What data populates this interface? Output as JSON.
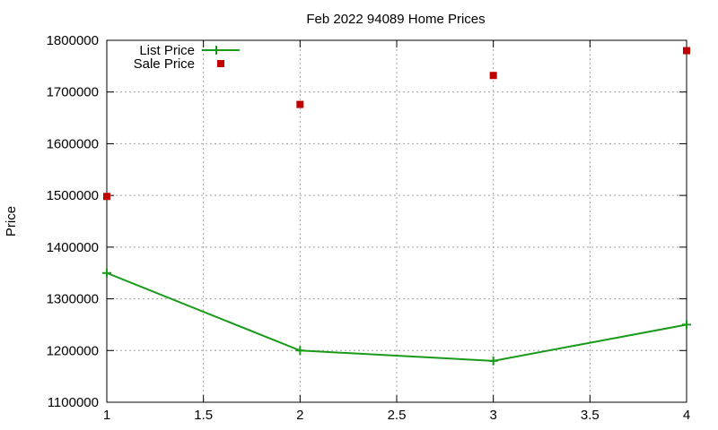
{
  "chart_data": {
    "type": "line",
    "title": "Feb 2022 94089 Home Prices",
    "xlabel": "",
    "ylabel": "Price",
    "xlim": [
      1,
      4
    ],
    "ylim": [
      1100000,
      1800000
    ],
    "x_ticks": [
      "1",
      "1.5",
      "2",
      "2.5",
      "3",
      "3.5",
      "4"
    ],
    "y_ticks": [
      "1100000",
      "1200000",
      "1300000",
      "1400000",
      "1500000",
      "1600000",
      "1700000",
      "1800000"
    ],
    "grid": true,
    "legend_position": "top-left",
    "series": [
      {
        "name": "List Price",
        "style": "line-with-plus-markers",
        "color": "#1a9a1a",
        "x": [
          1,
          2,
          3,
          4
        ],
        "y": [
          1350000,
          1200000,
          1180000,
          1250000
        ]
      },
      {
        "name": "Sale Price",
        "style": "square-markers",
        "color": "#c00000",
        "x": [
          1,
          2,
          3,
          4
        ],
        "y": [
          1498000,
          1676000,
          1732000,
          1780000
        ]
      }
    ]
  }
}
